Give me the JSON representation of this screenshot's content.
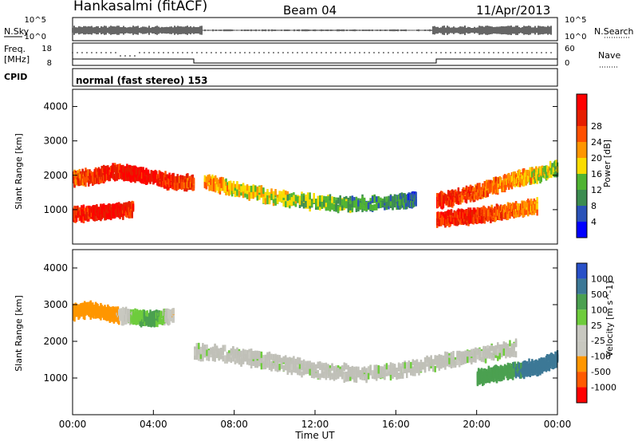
{
  "header": {
    "station": "Hankasalmi (fitACF)",
    "beam": "Beam 04",
    "date": "11/Apr/2013"
  },
  "left_labels": {
    "nsky": "N.Sky",
    "freq_line1": "Freq.",
    "freq_line2": "[MHz]",
    "cpid": "CPID"
  },
  "right_labels": {
    "nsearch": "N.Search",
    "nave": "Nave"
  },
  "scale_labels": {
    "nsky_top": "10^5",
    "nsky_bottom": "10^0",
    "freq_top": "18",
    "freq_bottom": "8",
    "nsearch_top": "10^5",
    "nsearch_bottom": "10^0",
    "nave_top": "60",
    "nave_bottom": "0"
  },
  "cpid_text": "normal (fast stereo) 153",
  "colors": {
    "power": [
      "#0000ff",
      "#2a52b8",
      "#3c8c50",
      "#50b432",
      "#fadc00",
      "#ff9600",
      "#ff5000",
      "#e61e00",
      "#ff0000"
    ],
    "velocity": [
      "#2850c8",
      "#3c7896",
      "#4ba050",
      "#6ecc3c",
      "#c8c8c0",
      "#c8c8c0",
      "#ff9600",
      "#ff5a00",
      "#ff0000"
    ],
    "ground_scatter": "#c0c0b8"
  },
  "chart_data": [
    {
      "type": "heatmap",
      "ylabel": "Slant Range [km]",
      "xlim": [
        "00:00",
        "24:00"
      ],
      "ylim": [
        0,
        4500
      ],
      "yticks": [
        "1000",
        "2000",
        "3000",
        "4000"
      ],
      "colorbar": {
        "label": "Power [dB]",
        "ticks": [
          "4",
          "8",
          "12",
          "16",
          "20",
          "24",
          "28"
        ],
        "range": [
          0,
          30
        ]
      },
      "series": [
        {
          "x": [
            0,
            1,
            2,
            3,
            4,
            5,
            6
          ],
          "y": [
            2000,
            2050,
            2200,
            2150,
            2000,
            1900,
            1850
          ],
          "values": [
            22,
            24,
            26,
            28,
            26,
            24,
            22
          ]
        },
        {
          "x": [
            0,
            1,
            2,
            3
          ],
          "y": [
            950,
            1000,
            1050,
            1100
          ],
          "values": [
            24,
            26,
            28,
            24
          ]
        },
        {
          "x": [
            6.5,
            8,
            10,
            12,
            14,
            16,
            17
          ],
          "y": [
            1900,
            1700,
            1450,
            1300,
            1250,
            1300,
            1400
          ],
          "values": [
            18,
            16,
            14,
            12,
            10,
            8,
            6
          ]
        },
        {
          "x": [
            18,
            19,
            20,
            21,
            22,
            23,
            24
          ],
          "y": [
            1350,
            1450,
            1600,
            1800,
            2000,
            2100,
            2300
          ],
          "values": [
            26,
            24,
            22,
            20,
            18,
            16,
            12
          ]
        },
        {
          "x": [
            18,
            19,
            20,
            21,
            22,
            23
          ],
          "y": [
            800,
            850,
            900,
            1000,
            1100,
            1200
          ],
          "values": [
            24,
            26,
            24,
            22,
            20,
            18
          ]
        }
      ]
    },
    {
      "type": "heatmap",
      "ylabel": "Slant Range [km]",
      "xlabel": "Time UT",
      "xticks": [
        "00:00",
        "04:00",
        "08:00",
        "12:00",
        "16:00",
        "20:00",
        "00:00"
      ],
      "yticks": [
        "1000",
        "2000",
        "3000",
        "4000"
      ],
      "ylim": [
        0,
        4500
      ],
      "colorbar": {
        "label": "Velocity [m s^-1]",
        "ticks": [
          "1000",
          "500",
          "100",
          "25",
          "-25",
          "-100",
          "-500",
          "-1000"
        ]
      },
      "series": [
        {
          "x": [
            0,
            1,
            2,
            3,
            4,
            5
          ],
          "y": [
            2900,
            2950,
            2800,
            2750,
            2700,
            2800
          ],
          "values": [
            -200,
            -300,
            -150,
            50,
            150,
            -100
          ]
        },
        {
          "x": [
            6,
            8,
            10,
            12,
            14,
            16,
            18,
            20,
            22
          ],
          "y": [
            1800,
            1700,
            1500,
            1300,
            1200,
            1300,
            1500,
            1700,
            1900
          ],
          "values": [
            0,
            0,
            0,
            0,
            0,
            0,
            0,
            0,
            0
          ]
        },
        {
          "x": [
            20,
            21,
            22,
            23,
            24
          ],
          "y": [
            1100,
            1200,
            1300,
            1400,
            1600
          ],
          "values": [
            300,
            400,
            500,
            600,
            800
          ]
        }
      ]
    }
  ]
}
